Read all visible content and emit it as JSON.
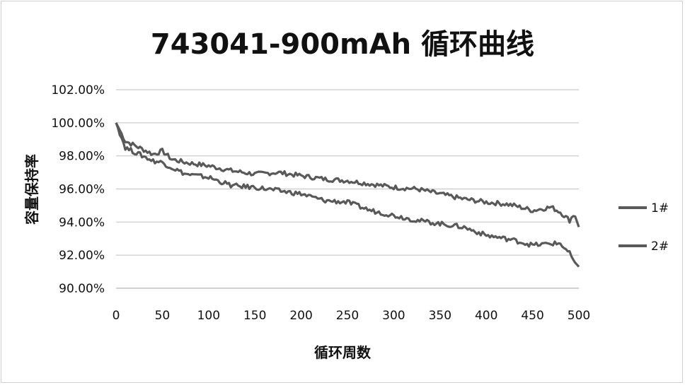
{
  "chart_data": {
    "type": "line",
    "title": "743041-900mAh 循环曲线",
    "xlabel": "循环周数",
    "ylabel": "容量保持率",
    "xlim": [
      0,
      500
    ],
    "ylim": [
      90,
      102
    ],
    "x_ticks": [
      "0",
      "50",
      "100",
      "150",
      "200",
      "250",
      "300",
      "350",
      "400",
      "450",
      "500"
    ],
    "y_ticks": [
      "90.00%",
      "92.00%",
      "94.00%",
      "96.00%",
      "98.00%",
      "100.00%",
      "102.00%"
    ],
    "grid": "horizontal",
    "legend_position": "right",
    "line_color": "#595959",
    "series": [
      {
        "name": "1#",
        "x": [
          0,
          10,
          25,
          40,
          50,
          60,
          75,
          100,
          125,
          150,
          175,
          200,
          225,
          250,
          275,
          300,
          325,
          350,
          375,
          400,
          420,
          430,
          450,
          470,
          480,
          490,
          495,
          500
        ],
        "y": [
          100.0,
          98.9,
          98.5,
          98.1,
          98.3,
          97.8,
          97.6,
          97.4,
          97.1,
          96.9,
          97.0,
          96.8,
          96.6,
          96.5,
          96.3,
          96.1,
          96.0,
          95.7,
          95.4,
          95.2,
          95.1,
          95.0,
          94.7,
          94.9,
          94.6,
          94.1,
          94.5,
          93.7
        ]
      },
      {
        "name": "2#",
        "x": [
          0,
          10,
          25,
          40,
          50,
          60,
          75,
          100,
          125,
          150,
          175,
          200,
          225,
          250,
          275,
          300,
          325,
          350,
          375,
          400,
          420,
          430,
          450,
          470,
          480,
          490,
          495,
          500
        ],
        "y": [
          100.0,
          98.5,
          98.1,
          97.7,
          97.6,
          97.3,
          96.9,
          96.7,
          96.2,
          96.1,
          95.9,
          95.7,
          95.3,
          95.2,
          94.7,
          94.4,
          94.1,
          93.9,
          93.7,
          93.2,
          93.0,
          92.9,
          92.6,
          92.7,
          92.7,
          92.1,
          91.6,
          91.3
        ]
      }
    ]
  }
}
